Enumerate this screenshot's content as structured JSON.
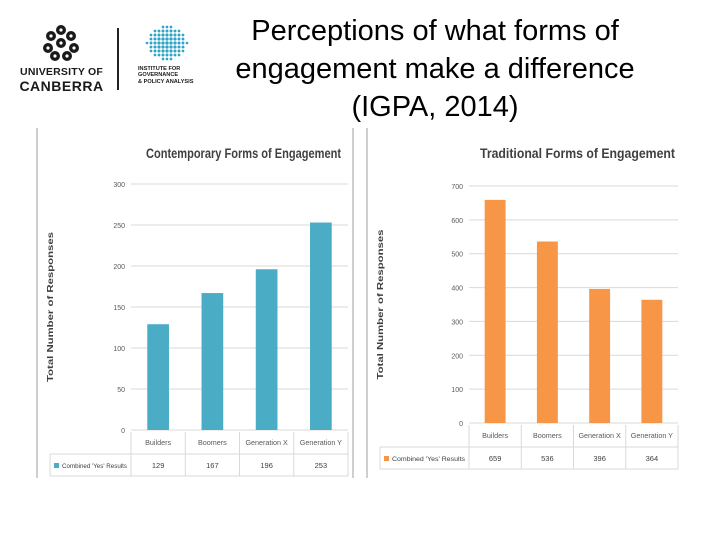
{
  "header": {
    "title": "Perceptions of what forms of engagement make a difference (IGPA, 2014)",
    "logo_uc": {
      "line1": "UNIVERSITY OF",
      "line2": "CANBERRA"
    },
    "logo_igpa": {
      "text": "INSTITUTE FOR\nGOVERNANCE\n& POLICY ANALYSIS"
    }
  },
  "colors": {
    "contemporary": "#4bacc6",
    "traditional": "#f79646",
    "grid": "#d9d9d9",
    "igpa_globe": "#2fa3c8"
  },
  "chart_data": [
    {
      "type": "bar",
      "title": "Contemporary Forms of Engagement",
      "ylabel": "Total Number of Responses",
      "xlabel": "",
      "categories": [
        "Builders",
        "Boomers",
        "Generation X",
        "Generation Y"
      ],
      "series": [
        {
          "name": "Combined 'Yes' Results",
          "values": [
            129,
            167,
            196,
            253
          ]
        }
      ],
      "table_values": [
        "129",
        "167",
        "196",
        "253"
      ],
      "ylim": [
        0,
        300
      ],
      "yticks": [
        0,
        50,
        100,
        150,
        200,
        250,
        300
      ],
      "grid": true,
      "legend": "data-table-below",
      "color": "#4bacc6"
    },
    {
      "type": "bar",
      "title": "Traditional Forms of Engagement",
      "ylabel": "Total Number of Responses",
      "xlabel": "",
      "categories": [
        "Builders",
        "Boomers",
        "Generation X",
        "Generation Y"
      ],
      "series": [
        {
          "name": "Combined 'Yes' Results",
          "values": [
            659,
            536,
            396,
            364
          ]
        }
      ],
      "table_values": [
        "659",
        "536",
        "396",
        "364"
      ],
      "ylim": [
        0,
        700
      ],
      "yticks": [
        0,
        100,
        200,
        300,
        400,
        500,
        600,
        700
      ],
      "grid": true,
      "legend": "data-table-below",
      "color": "#f79646"
    }
  ]
}
